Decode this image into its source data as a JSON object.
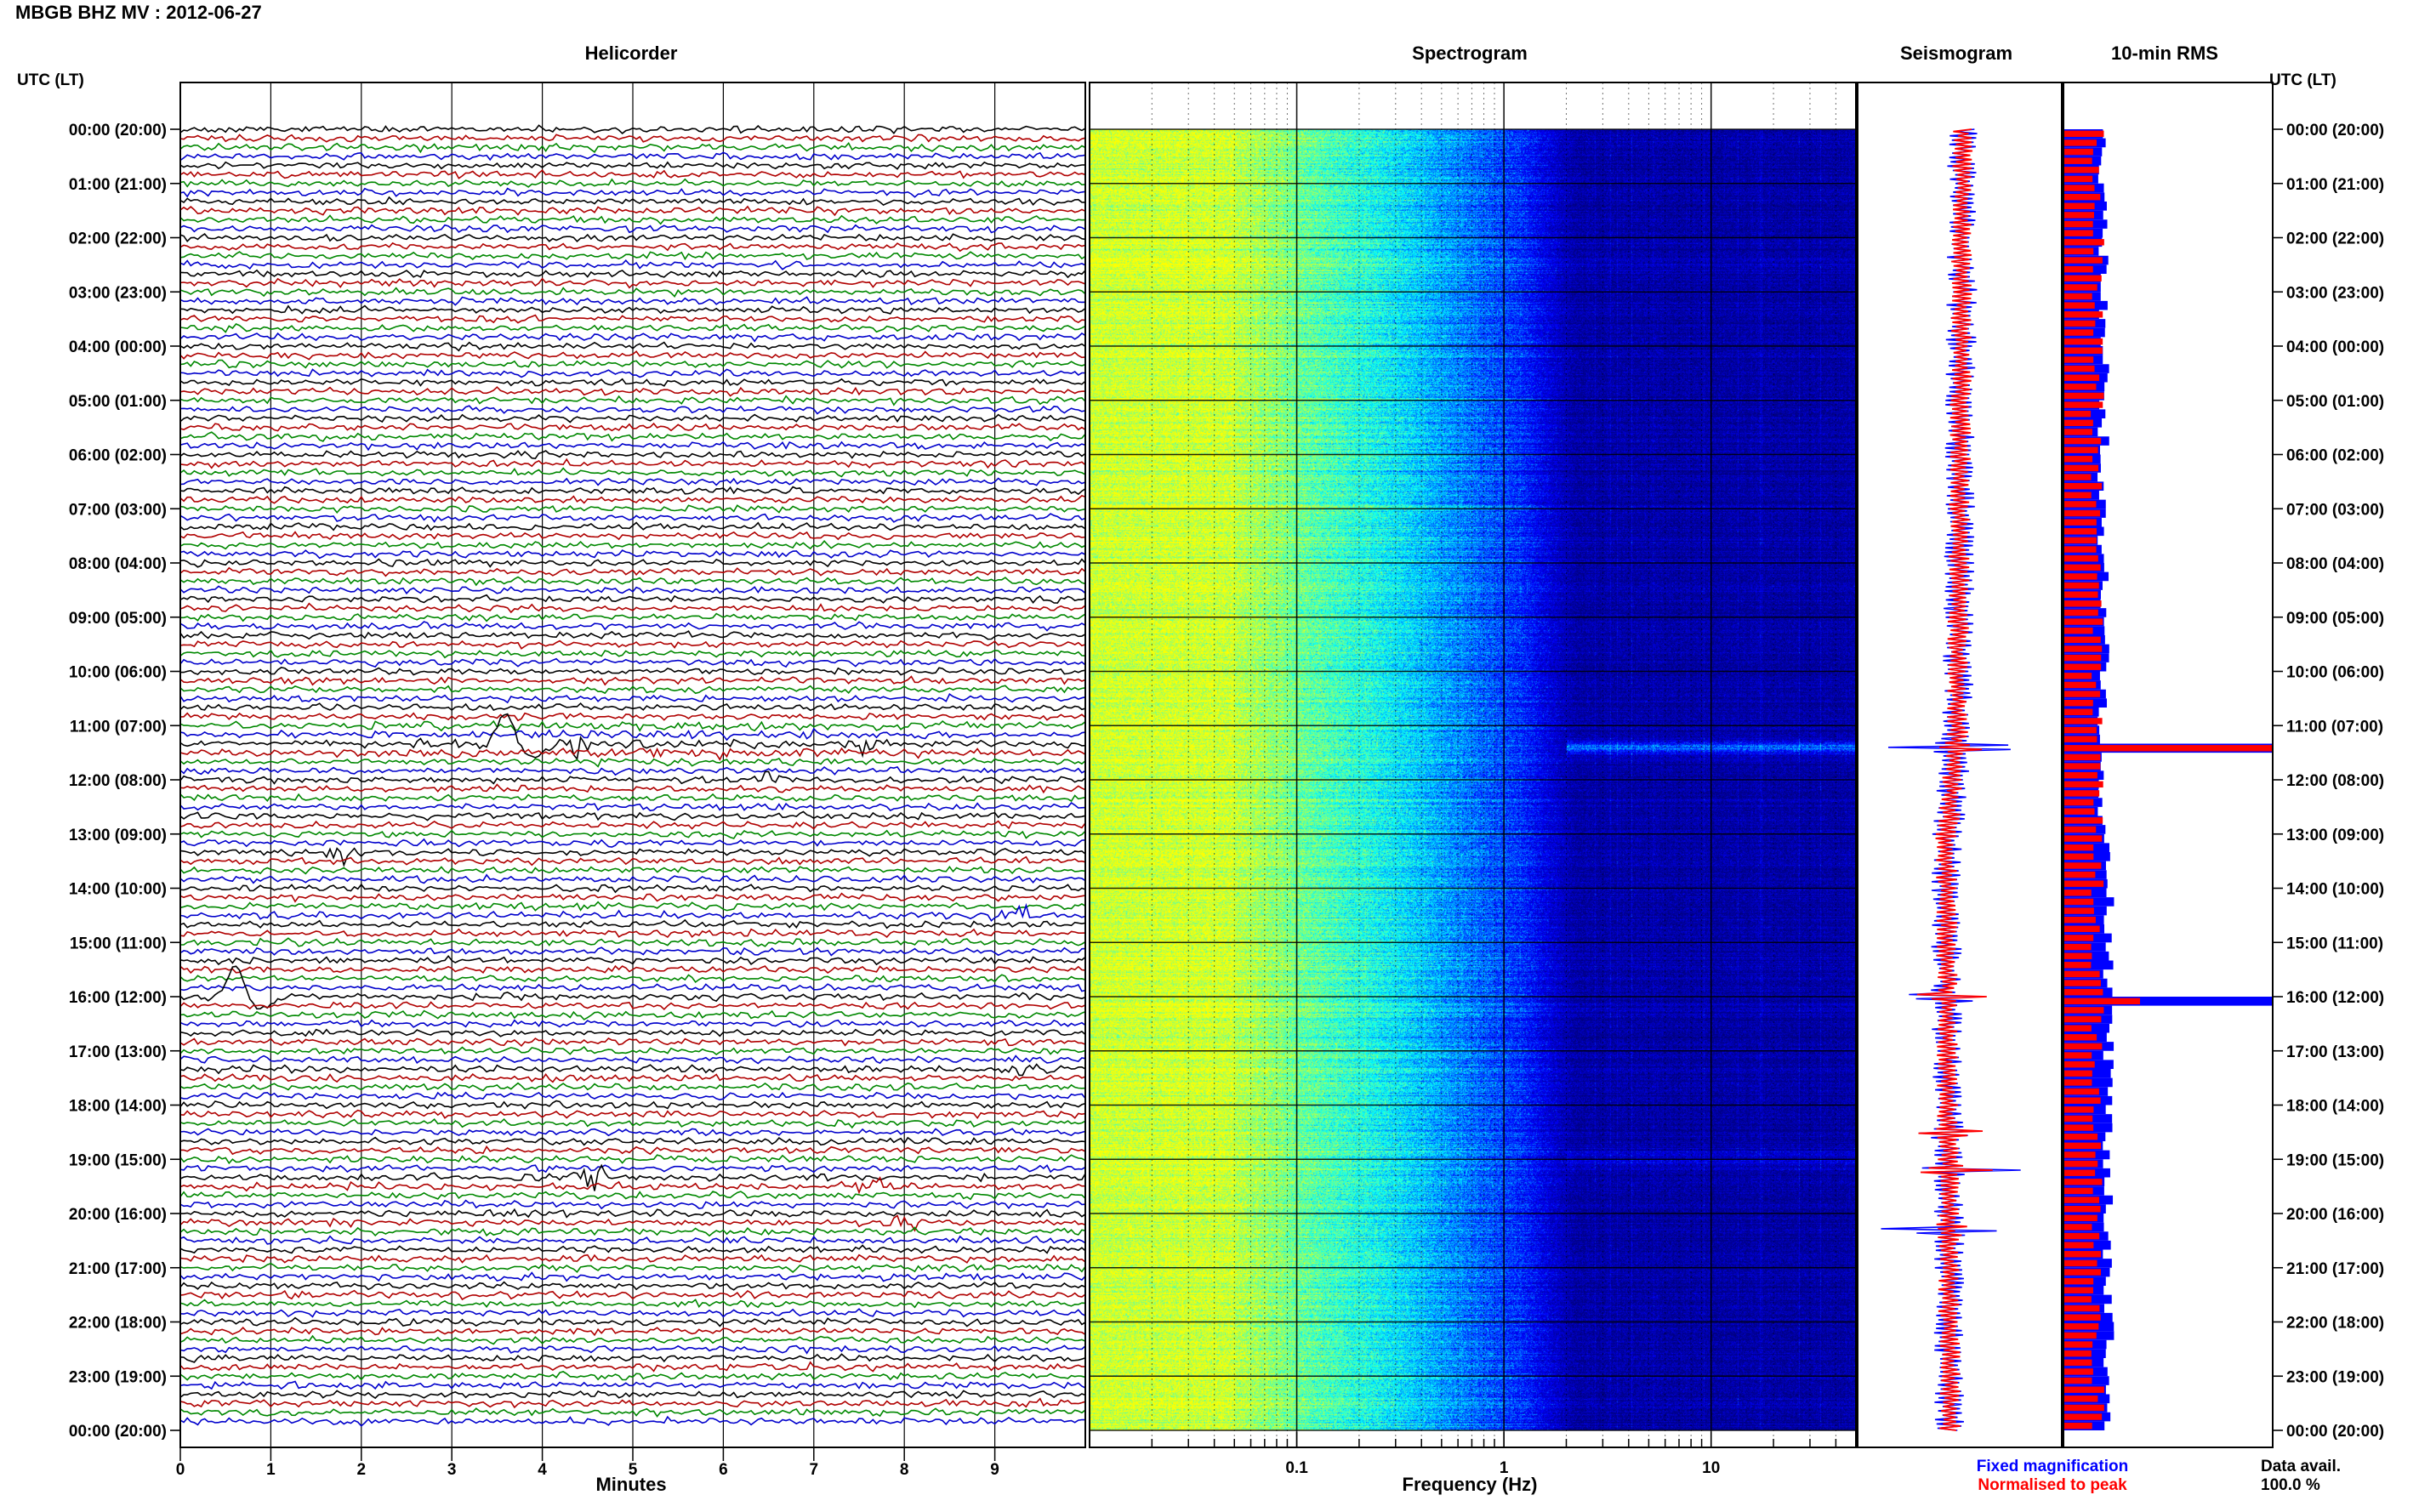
{
  "title": "MBGB BHZ MV : 2012-06-27",
  "tz_header": "UTC (LT)",
  "panels": {
    "helicorder": "Helicorder",
    "spectrogram": "Spectrogram",
    "seismogram": "Seismogram",
    "rms": "10-min RMS"
  },
  "legend": {
    "fixed": "Fixed magnification",
    "normalised": "Normalised to peak",
    "avail_label": "Data avail.",
    "avail_value": "100.0 %"
  },
  "colors": {
    "trace_cycle": [
      "#000000",
      "#b00000",
      "#008800",
      "#0000cc"
    ],
    "fixed": "#0000ff",
    "normalised": "#ff0000"
  },
  "chart_data": [
    {
      "type": "line",
      "name": "helicorder",
      "title": "Helicorder",
      "xlabel": "Minutes",
      "x_ticks": [
        0,
        1,
        2,
        3,
        4,
        5,
        6,
        7,
        8,
        9
      ],
      "xlim": [
        0,
        10
      ],
      "lines_per_hour": 6,
      "time_labels": [
        "00:00 (20:00)",
        "01:00 (21:00)",
        "02:00 (22:00)",
        "03:00 (23:00)",
        "04:00 (00:00)",
        "05:00 (01:00)",
        "06:00 (02:00)",
        "07:00 (03:00)",
        "08:00 (04:00)",
        "09:00 (05:00)",
        "10:00 (06:00)",
        "11:00 (07:00)",
        "12:00 (08:00)",
        "13:00 (09:00)",
        "14:00 (10:00)",
        "15:00 (11:00)",
        "16:00 (12:00)",
        "17:00 (13:00)",
        "18:00 (14:00)",
        "19:00 (15:00)",
        "20:00 (16:00)",
        "21:00 (17:00)",
        "22:00 (18:00)",
        "23:00 (19:00)",
        "00:00 (20:00)"
      ],
      "events": [
        {
          "line": 68,
          "minute": 3.6,
          "kind": "pulse"
        },
        {
          "line": 68,
          "minute": 4.3,
          "kind": "burst"
        },
        {
          "line": 68,
          "minute": 7.5,
          "kind": "burst"
        },
        {
          "line": 72,
          "minute": 6.6,
          "kind": "burst"
        },
        {
          "line": 80,
          "minute": 1.8,
          "kind": "burst"
        },
        {
          "line": 87,
          "minute": 9.2,
          "kind": "burst"
        },
        {
          "line": 96,
          "minute": 0.6,
          "kind": "pulse"
        },
        {
          "line": 104,
          "minute": 9.4,
          "kind": "burst"
        },
        {
          "line": 116,
          "minute": 4.5,
          "kind": "burst"
        },
        {
          "line": 117,
          "minute": 7.6,
          "kind": "burst"
        },
        {
          "line": 121,
          "minute": 8.0,
          "kind": "burst"
        }
      ]
    },
    {
      "type": "heatmap",
      "name": "spectrogram",
      "title": "Spectrogram",
      "xlabel": "Frequency (Hz)",
      "x_scale": "log",
      "xlim": [
        0.01,
        50
      ],
      "x_ticks": [
        0.1,
        1,
        10
      ],
      "colormap": [
        "#00007f",
        "#0000ff",
        "#00ffff",
        "#ffff00"
      ]
    },
    {
      "type": "line",
      "name": "seismogram",
      "title": "Seismogram",
      "series": [
        {
          "name": "Fixed magnification",
          "color": "#0000ff"
        },
        {
          "name": "Normalised to peak",
          "color": "#ff0000"
        }
      ],
      "peaks_hours": [
        11.4,
        16.0,
        18.5,
        19.2,
        20.3
      ]
    },
    {
      "type": "bar",
      "name": "10-min RMS",
      "title": "10-min RMS",
      "series": [
        {
          "name": "Fixed magnification",
          "color": "#0000ff"
        },
        {
          "name": "Normalised to peak",
          "color": "#ff0000"
        }
      ],
      "intervals_per_day": 144,
      "peak_intervals": [
        68,
        96
      ]
    }
  ]
}
